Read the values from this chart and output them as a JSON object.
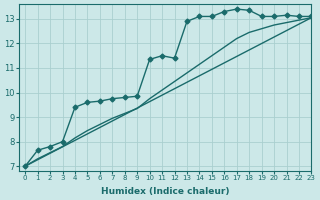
{
  "background_color": "#cce8e8",
  "grid_color": "#aacfcf",
  "line_color": "#1a6b6b",
  "xlabel": "Humidex (Indice chaleur)",
  "xlim": [
    -0.5,
    23
  ],
  "ylim": [
    6.8,
    13.6
  ],
  "yticks": [
    7,
    8,
    9,
    10,
    11,
    12,
    13
  ],
  "xticks": [
    0,
    1,
    2,
    3,
    4,
    5,
    6,
    7,
    8,
    9,
    10,
    11,
    12,
    13,
    14,
    15,
    16,
    17,
    18,
    19,
    20,
    21,
    22,
    23
  ],
  "line1_x": [
    0,
    1,
    2,
    3,
    4,
    5,
    6,
    7,
    8,
    9,
    10,
    11,
    12,
    13,
    14,
    15,
    16,
    17,
    18,
    19,
    20,
    21,
    22,
    23
  ],
  "line1_y": [
    7.0,
    7.65,
    7.8,
    8.0,
    9.4,
    9.6,
    9.65,
    9.75,
    9.8,
    9.85,
    11.35,
    11.5,
    11.4,
    12.9,
    13.1,
    13.1,
    13.3,
    13.4,
    13.35,
    13.1,
    13.1,
    13.15,
    13.1,
    13.1
  ],
  "line2_x": [
    0,
    1,
    2,
    3,
    4,
    5,
    6,
    7,
    8,
    9,
    10,
    11,
    12,
    13,
    14,
    15,
    16,
    17,
    18,
    19,
    20,
    21,
    22,
    23
  ],
  "line2_y": [
    7.0,
    7.3,
    7.55,
    7.8,
    8.15,
    8.45,
    8.7,
    8.95,
    9.15,
    9.35,
    9.75,
    10.1,
    10.45,
    10.8,
    11.15,
    11.5,
    11.85,
    12.2,
    12.45,
    12.6,
    12.75,
    12.85,
    12.95,
    13.05
  ],
  "line3_x": [
    0,
    23
  ],
  "line3_y": [
    7.0,
    13.05
  ],
  "marker": "D",
  "marker_size": 2.5,
  "line_width": 1.0
}
